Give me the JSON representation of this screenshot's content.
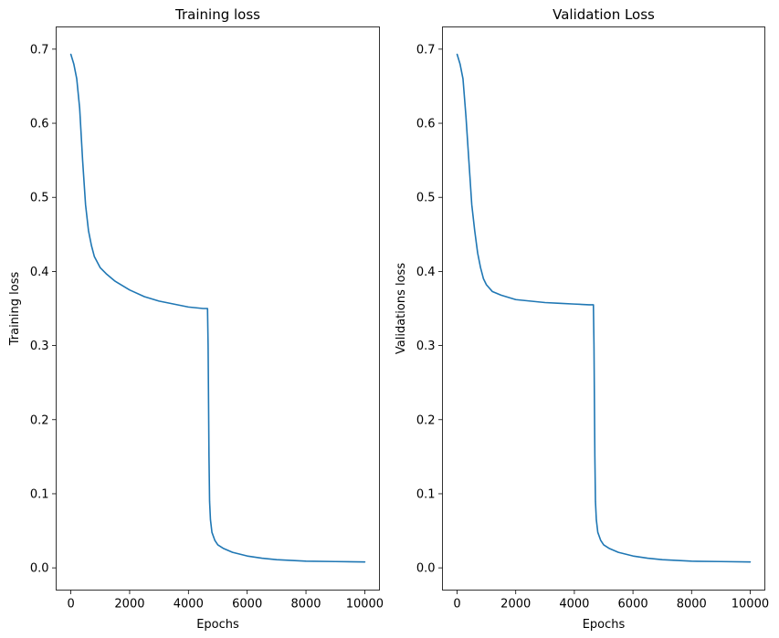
{
  "chart_data": [
    {
      "type": "line",
      "title": "Training loss",
      "xlabel": "Epochs",
      "ylabel": "Training loss",
      "xlim": [
        -500,
        10500
      ],
      "ylim": [
        -0.03,
        0.73
      ],
      "xticks": [
        0,
        2000,
        4000,
        6000,
        8000,
        10000
      ],
      "xtick_labels": [
        "0",
        "2000",
        "4000",
        "6000",
        "8000",
        "10000"
      ],
      "yticks": [
        0.0,
        0.1,
        0.2,
        0.3,
        0.4,
        0.5,
        0.6,
        0.7
      ],
      "ytick_labels": [
        "0.0",
        "0.1",
        "0.2",
        "0.3",
        "0.4",
        "0.5",
        "0.6",
        "0.7"
      ],
      "grid": false,
      "series": [
        {
          "color": "#1f77b4",
          "x": [
            0,
            100,
            200,
            300,
            400,
            500,
            600,
            700,
            800,
            1000,
            1200,
            1500,
            2000,
            2500,
            3000,
            3500,
            4000,
            4500,
            4650,
            4670,
            4700,
            4720,
            4750,
            4800,
            4900,
            5000,
            5200,
            5500,
            6000,
            6500,
            7000,
            8000,
            9000,
            10000
          ],
          "y": [
            0.693,
            0.68,
            0.66,
            0.62,
            0.55,
            0.49,
            0.455,
            0.435,
            0.42,
            0.405,
            0.397,
            0.387,
            0.375,
            0.366,
            0.36,
            0.356,
            0.352,
            0.35,
            0.35,
            0.3,
            0.15,
            0.09,
            0.065,
            0.048,
            0.037,
            0.031,
            0.026,
            0.021,
            0.016,
            0.013,
            0.011,
            0.009,
            0.0085,
            0.008
          ]
        }
      ]
    },
    {
      "type": "line",
      "title": "Validation Loss",
      "xlabel": "Epochs",
      "ylabel": "Validations loss",
      "xlim": [
        -500,
        10500
      ],
      "ylim": [
        -0.03,
        0.73
      ],
      "xticks": [
        0,
        2000,
        4000,
        6000,
        8000,
        10000
      ],
      "xtick_labels": [
        "0",
        "2000",
        "4000",
        "6000",
        "8000",
        "10000"
      ],
      "yticks": [
        0.0,
        0.1,
        0.2,
        0.3,
        0.4,
        0.5,
        0.6,
        0.7
      ],
      "ytick_labels": [
        "0.0",
        "0.1",
        "0.2",
        "0.3",
        "0.4",
        "0.5",
        "0.6",
        "0.7"
      ],
      "grid": false,
      "series": [
        {
          "color": "#1f77b4",
          "x": [
            0,
            100,
            200,
            300,
            400,
            500,
            600,
            700,
            800,
            900,
            1000,
            1200,
            1500,
            2000,
            2500,
            3000,
            3500,
            4000,
            4500,
            4650,
            4670,
            4700,
            4720,
            4750,
            4800,
            4900,
            5000,
            5200,
            5500,
            6000,
            6500,
            7000,
            8000,
            9000,
            10000
          ],
          "y": [
            0.693,
            0.68,
            0.66,
            0.61,
            0.55,
            0.49,
            0.455,
            0.425,
            0.405,
            0.39,
            0.382,
            0.373,
            0.368,
            0.362,
            0.36,
            0.358,
            0.357,
            0.356,
            0.355,
            0.355,
            0.3,
            0.15,
            0.09,
            0.065,
            0.048,
            0.037,
            0.031,
            0.026,
            0.021,
            0.016,
            0.013,
            0.011,
            0.009,
            0.0085,
            0.008
          ]
        }
      ]
    }
  ]
}
